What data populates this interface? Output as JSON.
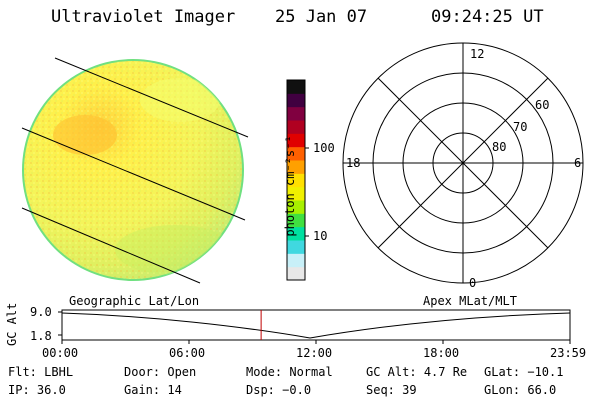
{
  "header": {
    "instrument": "Ultraviolet Imager",
    "date": "25 Jan 07",
    "time": "09:24:25 UT"
  },
  "colorbar": {
    "label": "photon cm⁻²s⁻¹",
    "ticks": [
      {
        "label": "100",
        "value": 100
      },
      {
        "label": "10",
        "value": 10
      }
    ],
    "colors": [
      "#e8e8e8",
      "#c8f0f8",
      "#40d8e0",
      "#00e0a0",
      "#40e040",
      "#a8f000",
      "#f0f000",
      "#ffe000",
      "#ffa000",
      "#ff6000",
      "#e00000",
      "#b00020",
      "#800040",
      "#400040",
      "#101010"
    ]
  },
  "polar_grid": {
    "mlt_labels": [
      {
        "label": "12",
        "position": "top"
      },
      {
        "label": "18",
        "position": "left"
      },
      {
        "label": "6",
        "position": "right"
      },
      {
        "label": "0",
        "position": "bottom"
      }
    ],
    "lat_labels": [
      {
        "label": "80",
        "value": 80
      },
      {
        "label": "70",
        "value": 70
      },
      {
        "label": "60",
        "value": 60
      }
    ]
  },
  "timeline": {
    "left_label": "Geographic Lat/Lon",
    "right_label": "Apex MLat/MLT",
    "axis_title": "GC Alt",
    "y_ticks": [
      "9.0",
      "1.8"
    ],
    "x_ticks": [
      "00:00",
      "06:00",
      "12:00",
      "18:00",
      "23:59"
    ],
    "marker_time": "09:24:25",
    "marker_color": "#c00000"
  },
  "info": {
    "row1": [
      {
        "key": "Flt:",
        "value": "LBHL"
      },
      {
        "key": "Door:",
        "value": "Open"
      },
      {
        "key": "Mode:",
        "value": "Normal"
      },
      {
        "key": "GC Alt:",
        "value": "4.7 Re"
      },
      {
        "key": "GLat:",
        "value": "−10.1"
      }
    ],
    "row2": [
      {
        "key": "IP:",
        "value": "36.0"
      },
      {
        "key": "Gain:",
        "value": "14"
      },
      {
        "key": "Dsp:",
        "value": "−0.0"
      },
      {
        "key": "Seq:",
        "value": "39"
      },
      {
        "key": "GLon:",
        "value": "66.0"
      }
    ]
  }
}
